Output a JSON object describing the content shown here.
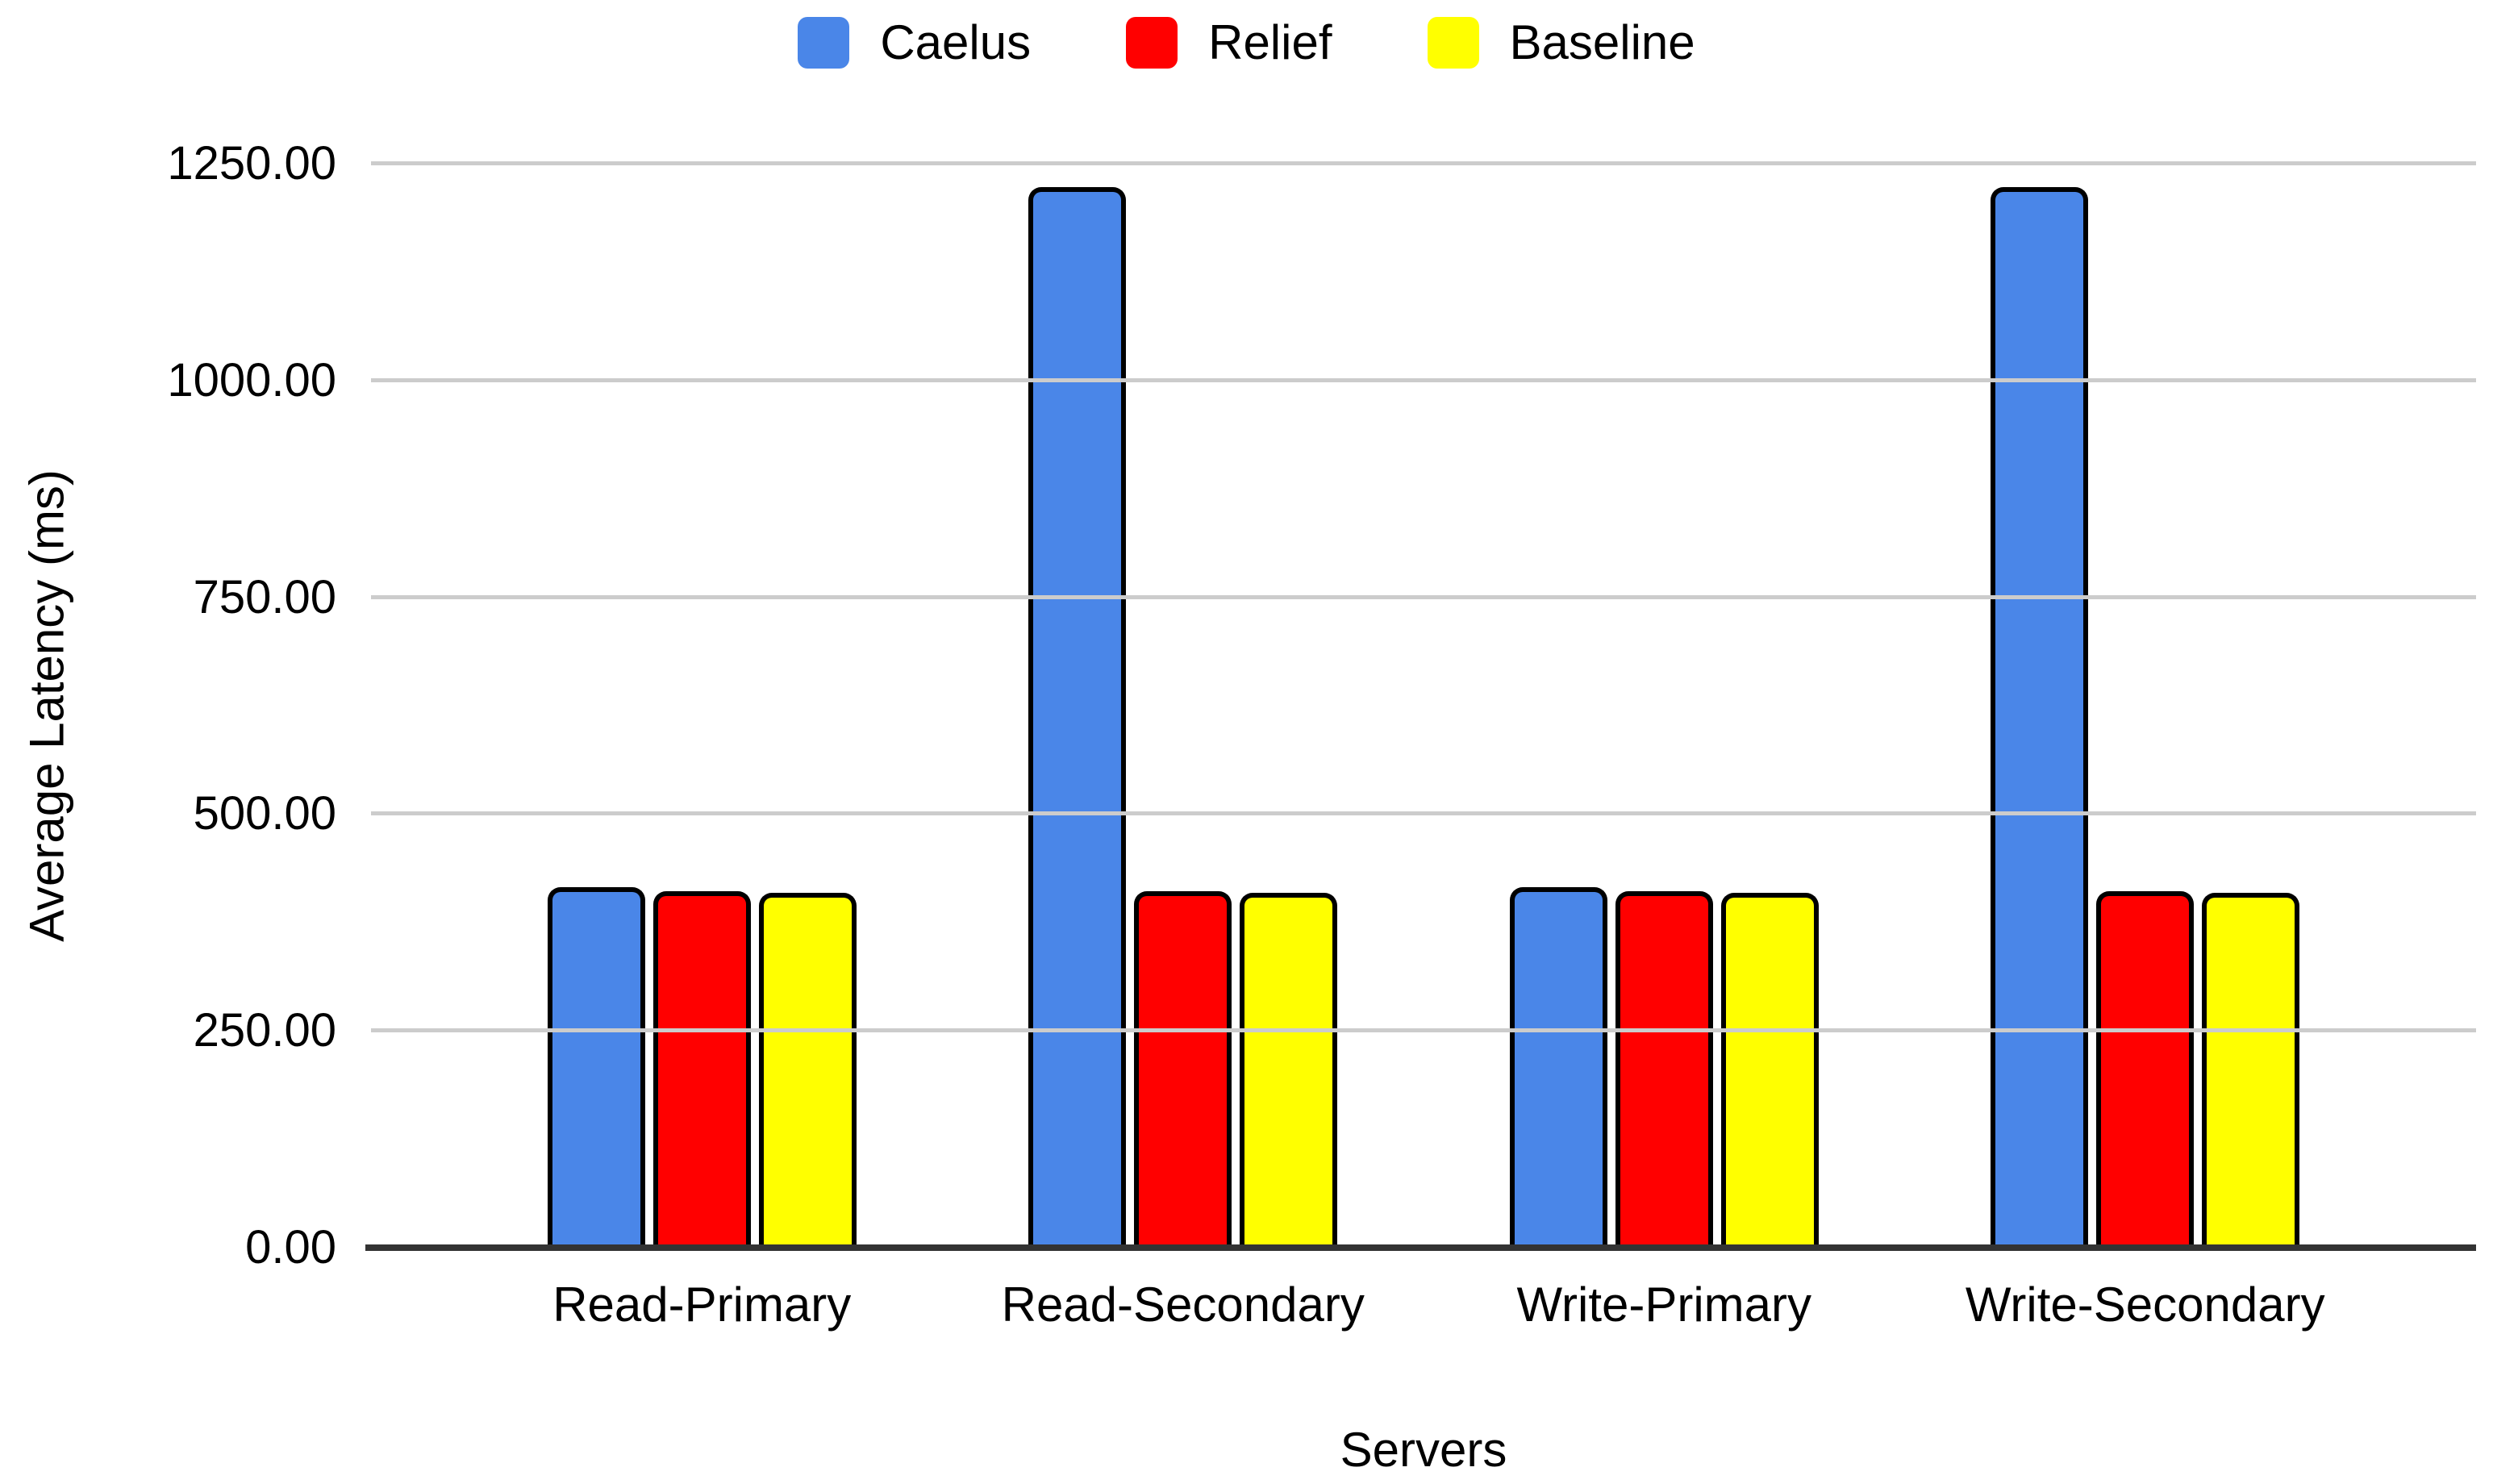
{
  "chart_data": {
    "type": "bar",
    "title": "",
    "xlabel": "Servers",
    "ylabel": "Average Latency (ms)",
    "categories": [
      "Read-Primary",
      "Read-Secondary",
      "Write-Primary",
      "Write-Secondary"
    ],
    "series": [
      {
        "name": "Caelus",
        "color": "#4a86e8",
        "values": [
          416,
          1223,
          416,
          1223
        ]
      },
      {
        "name": "Relief",
        "color": "#ff0000",
        "values": [
          411,
          411,
          411,
          411
        ]
      },
      {
        "name": "Baseline",
        "color": "#ffff00",
        "values": [
          409,
          409,
          409,
          409
        ]
      }
    ],
    "ylim": [
      0,
      1250
    ],
    "ytick_step": 250,
    "ytick_labels": [
      "0.00",
      "250.00",
      "500.00",
      "750.00",
      "1000.00",
      "1250.00"
    ],
    "grid": true,
    "legend_position": "top"
  },
  "colors": {
    "gridline": "#cccccc",
    "axis_line": "#333333",
    "bar_outline": "#000000",
    "text": "#000000",
    "background": "#ffffff"
  }
}
